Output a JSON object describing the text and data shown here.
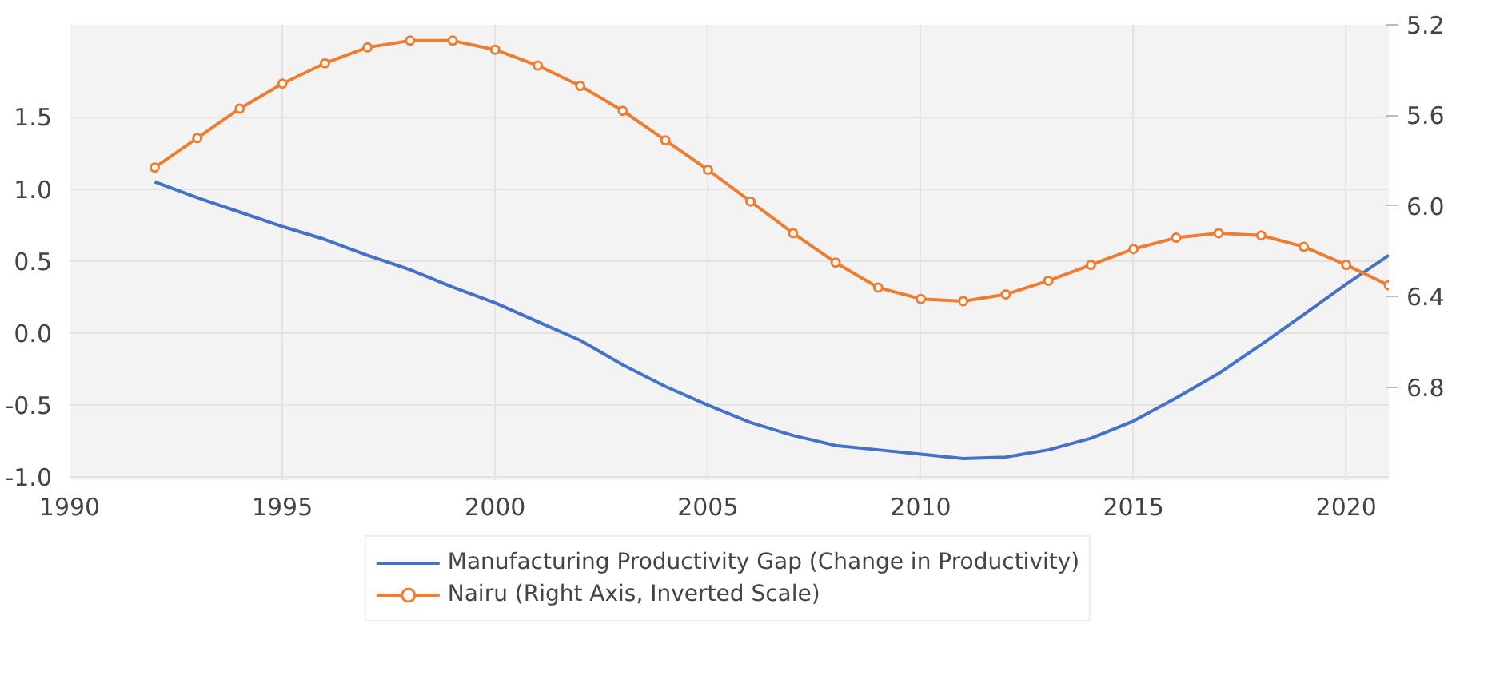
{
  "chart_data": {
    "type": "line",
    "x": [
      1992,
      1993,
      1994,
      1995,
      1996,
      1997,
      1998,
      1999,
      2000,
      2001,
      2002,
      2003,
      2004,
      2005,
      2006,
      2007,
      2008,
      2009,
      2010,
      2011,
      2012,
      2013,
      2014,
      2015,
      2016,
      2017,
      2018,
      2019,
      2020,
      2021
    ],
    "series": [
      {
        "name": "Manufacturing Productivity Gap (Change in Productivity)",
        "color": "#4472c4",
        "marker": "none",
        "values": [
          1.05,
          0.94,
          0.84,
          0.74,
          0.65,
          0.54,
          0.44,
          0.32,
          0.21,
          0.08,
          -0.05,
          -0.22,
          -0.37,
          -0.5,
          -0.62,
          -0.71,
          -0.78,
          -0.81,
          -0.84,
          -0.87,
          -0.86,
          -0.81,
          -0.73,
          -0.61,
          -0.45,
          -0.28,
          -0.08,
          0.13,
          0.34,
          0.54
        ]
      },
      {
        "name": "Nairu (Right Axis, Inverted Scale)",
        "color": "#ed7d31",
        "marker": "circle",
        "axis": "y2",
        "values": [
          5.83,
          5.7,
          5.57,
          5.46,
          5.37,
          5.3,
          5.27,
          5.27,
          5.31,
          5.38,
          5.47,
          5.58,
          5.71,
          5.84,
          5.98,
          6.12,
          6.25,
          6.36,
          6.41,
          6.42,
          6.39,
          6.33,
          6.26,
          6.19,
          6.14,
          6.12,
          6.13,
          6.18,
          6.26,
          6.35
        ]
      }
    ],
    "xlim": [
      1990,
      2021
    ],
    "xticks": [
      1990,
      1995,
      2000,
      2005,
      2010,
      2015,
      2020
    ],
    "ylim": [
      -1.02,
      2.14
    ],
    "yticks": [
      {
        "value": -1,
        "label": "-1.0"
      },
      -0.5,
      {
        "value": 0,
        "label": "0.0"
      },
      0.5,
      {
        "value": 1,
        "label": "1.0"
      },
      1.5
    ],
    "y2lim": [
      7.21,
      5.2
    ],
    "y2ticks": [
      5.2,
      5.6,
      {
        "value": 6,
        "label": "6.0"
      },
      6.4,
      6.8
    ],
    "grid": true,
    "legend": "bottom"
  }
}
